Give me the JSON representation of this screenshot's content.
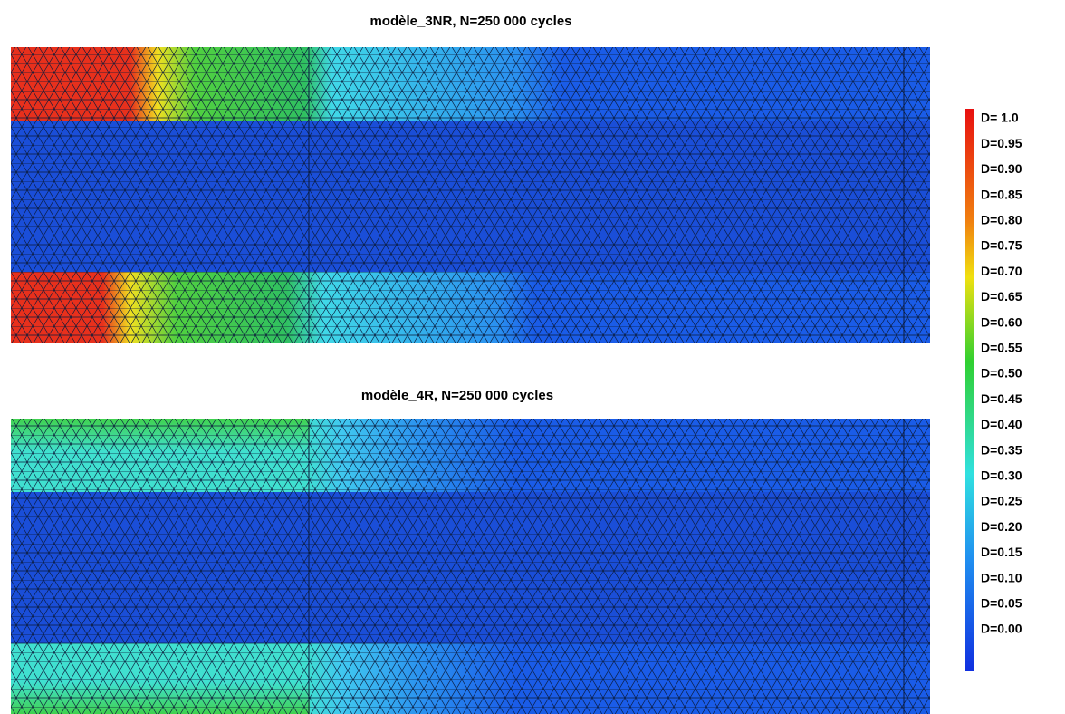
{
  "titles": [
    "modèle_3NR, N=250 000 cycles",
    "modèle_4R, N=250 000 cycles"
  ],
  "legend": {
    "labels": [
      "D= 1.0",
      "D=0.95",
      "D=0.90",
      "D=0.85",
      "D=0.80",
      "D=0.75",
      "D=0.70",
      "D=0.65",
      "D=0.60",
      "D=0.55",
      "D=0.50",
      "D=0.45",
      "D=0.40",
      "D=0.35",
      "D=0.30",
      "D=0.25",
      "D=0.20",
      "D=0.15",
      "D=0.10",
      "D=0.05",
      "D=0.00"
    ]
  }
}
